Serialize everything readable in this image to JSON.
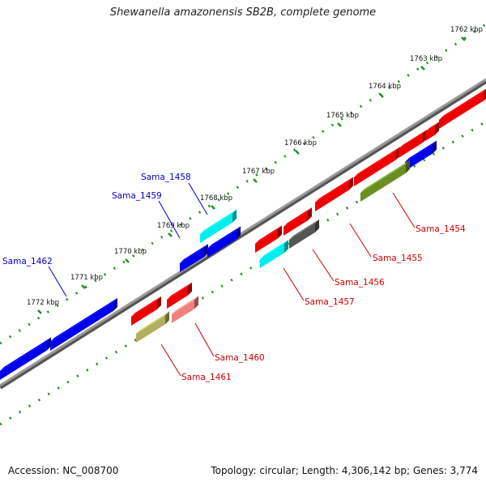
{
  "title": "Shewanella amazonensis SB2B, complete genome",
  "footer": {
    "accession": "Accession: NC_008700",
    "summary": "Topology: circular; Length: 4,306,142 bp; Genes: 3,774"
  },
  "colors": {
    "backbone": "#7f7f7f",
    "tick": "#228b22",
    "plus_label": "#0000cc",
    "minus_label": "#cc0000"
  },
  "scale_ticks": [
    {
      "label": "1762 kbp",
      "kbp": 1762
    },
    {
      "label": "1763 kbp",
      "kbp": 1763
    },
    {
      "label": "1764 kbp",
      "kbp": 1764
    },
    {
      "label": "1765 kbp",
      "kbp": 1765
    },
    {
      "label": "1766 kbp",
      "kbp": 1766
    },
    {
      "label": "1767 kbp",
      "kbp": 1767
    },
    {
      "label": "1768 kbp",
      "kbp": 1768
    },
    {
      "label": "1769 kbp",
      "kbp": 1769
    },
    {
      "label": "1770 kbp",
      "kbp": 1770
    },
    {
      "label": "1771 kbp",
      "kbp": 1771
    },
    {
      "label": "1772 kbp",
      "kbp": 1772
    }
  ],
  "genes_plus_strand": [
    {
      "label": "Sama_1458",
      "color": "#00eeee"
    },
    {
      "label": "Sama_1459",
      "color": "#0000ee"
    },
    {
      "label": "Sama_1462",
      "color": "#0000ee"
    }
  ],
  "genes_minus_strand": [
    {
      "label": "Sama_1454",
      "color": "#0000ee"
    },
    {
      "label": "Sama_1455",
      "color": "#ee0000"
    },
    {
      "label": "Sama_1456",
      "color": "#555555"
    },
    {
      "label": "Sama_1457",
      "color": "#00eeee"
    },
    {
      "label": "Sama_1460",
      "color": "#f08080"
    },
    {
      "label": "Sama_1461",
      "color": "#b0b060"
    }
  ],
  "unlabeled_genes": [
    "#ee0000",
    "#0000ee",
    "#ee0000",
    "#6b8e23"
  ]
}
